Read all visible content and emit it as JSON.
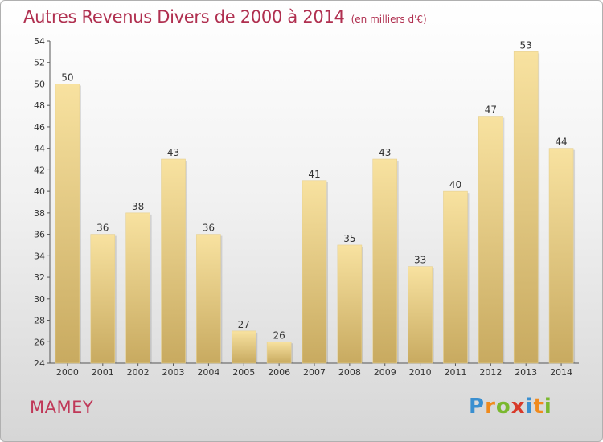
{
  "header": {
    "title": "Autres Revenus Divers de 2000 à 2014",
    "unit": "(en milliers d'€)"
  },
  "footer": {
    "place": "MAMEY",
    "logo": [
      "P",
      "r",
      "o",
      "x",
      "i",
      "t",
      "i"
    ],
    "logo_colors": [
      "#3a8fd0",
      "#f08a1c",
      "#7ab82e",
      "#d83a2a",
      "#3a8fd0",
      "#f08a1c",
      "#7ab82e"
    ]
  },
  "colors": {
    "bar_light": "#f8e2a0",
    "bar_dark": "#c8aa60",
    "axis": "#555555",
    "grid": "#cccccc"
  },
  "chart_data": {
    "type": "bar",
    "title": "Autres Revenus Divers de 2000 à 2014",
    "subtitle": "(en milliers d'€)",
    "categories": [
      "2000",
      "2001",
      "2002",
      "2003",
      "2004",
      "2005",
      "2006",
      "2007",
      "2008",
      "2009",
      "2010",
      "2011",
      "2012",
      "2013",
      "2014"
    ],
    "values": [
      50,
      36,
      38,
      43,
      36,
      27,
      26,
      41,
      35,
      43,
      33,
      40,
      47,
      53,
      44
    ],
    "ylim": [
      24,
      54
    ],
    "yticks": [
      24,
      26,
      28,
      30,
      32,
      34,
      36,
      38,
      40,
      42,
      44,
      46,
      48,
      50,
      52,
      54
    ],
    "grid": false,
    "data_labels": true
  }
}
